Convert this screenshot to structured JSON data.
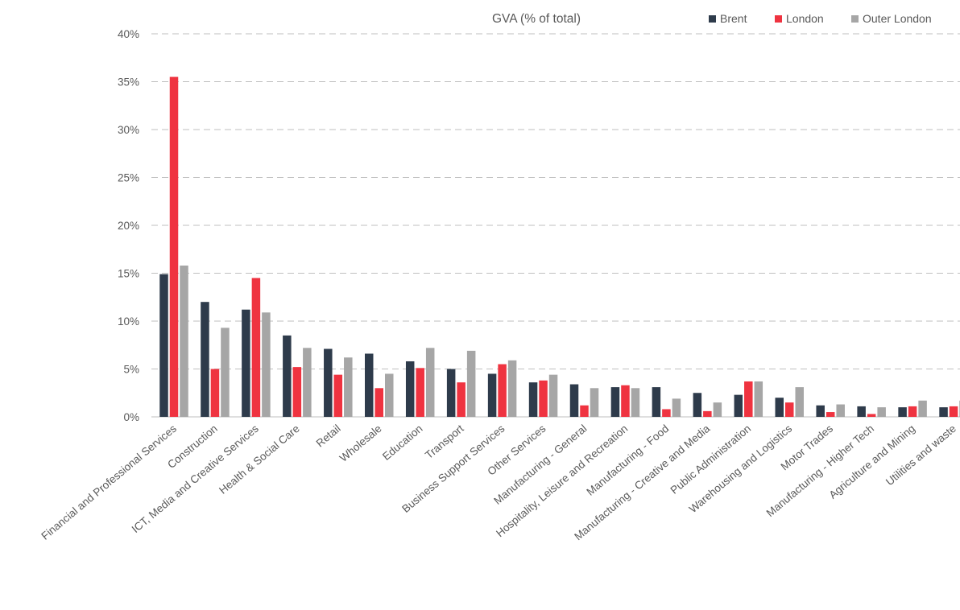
{
  "chart_data": {
    "type": "bar",
    "title": "GVA (% of total)",
    "xlabel": "",
    "ylabel": "",
    "ylim": [
      0,
      40
    ],
    "yticks": [
      "0%",
      "5%",
      "10%",
      "15%",
      "20%",
      "25%",
      "30%",
      "35%",
      "40%"
    ],
    "grid": true,
    "legend_position": "top-right",
    "categories": [
      "Financial and Professional Services",
      "Construction",
      "ICT, Media and Creative Services",
      "Health & Social Care",
      "Retail",
      "Wholesale",
      "Education",
      "Transport",
      "Business Support Services",
      "Other Services",
      "Manufacturing - General",
      "Hospitality, Leisure and Recreation",
      "Manufacturing - Food",
      "Manufacturing - Creative and Media",
      "Public Administration",
      "Warehousing and Logistics",
      "Motor Trades",
      "Manufacturing - Higher Tech",
      "Agriculture and Mining",
      "Utilities and waste"
    ],
    "series": [
      {
        "name": "Brent",
        "color": "#2e3b4b",
        "values": [
          14.9,
          12.0,
          11.2,
          8.5,
          7.1,
          6.6,
          5.8,
          5.0,
          4.5,
          3.6,
          3.4,
          3.1,
          3.1,
          2.5,
          2.3,
          2.0,
          1.2,
          1.1,
          1.0,
          1.0
        ]
      },
      {
        "name": "London",
        "color": "#ef3340",
        "values": [
          35.5,
          5.0,
          14.5,
          5.2,
          4.4,
          3.0,
          5.1,
          3.6,
          5.5,
          3.8,
          1.2,
          3.3,
          0.8,
          0.6,
          3.7,
          1.5,
          0.5,
          0.3,
          1.1,
          1.1
        ]
      },
      {
        "name": "Outer London",
        "color": "#a6a6a6",
        "values": [
          15.8,
          9.3,
          10.9,
          7.2,
          6.2,
          4.5,
          7.2,
          6.9,
          5.9,
          4.4,
          3.0,
          3.0,
          1.9,
          1.5,
          3.7,
          3.1,
          1.3,
          1.0,
          1.7,
          1.7
        ]
      }
    ]
  }
}
